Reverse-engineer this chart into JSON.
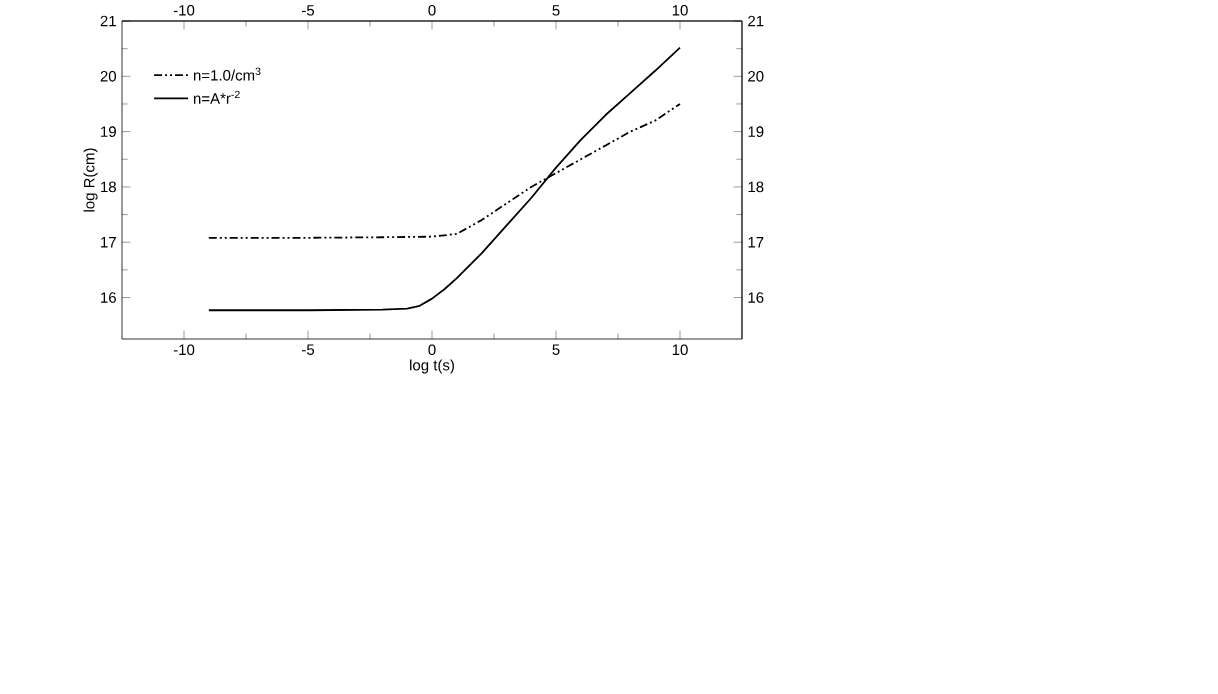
{
  "chart_data": {
    "type": "line",
    "xlabel": "log t(s)",
    "ylabel": "log R(cm)",
    "xlim": [
      -12.5,
      12.5
    ],
    "xticks": [
      -10,
      -5,
      0,
      5,
      10
    ],
    "ylim": [
      15.25,
      21
    ],
    "yticks": [
      16,
      17,
      18,
      19,
      20,
      21
    ],
    "x2lim": [
      -12.5,
      12.5
    ],
    "x2ticks": [
      -10,
      -5,
      0,
      5,
      10
    ],
    "y2lim": [
      15.25,
      21
    ],
    "y2ticks": [
      16,
      17,
      18,
      19,
      20,
      21
    ],
    "legend": "top left",
    "grid": false,
    "marker": "none",
    "series": [
      {
        "name": "n=1.0/cm$^{3}$",
        "color": "#000000",
        "line_style": "dashed",
        "x": [
          -9,
          -5,
          -2,
          0,
          1,
          2,
          3,
          4,
          5,
          6,
          7,
          8,
          9,
          10
        ],
        "values": [
          17.08,
          17.08,
          17.09,
          17.1,
          17.15,
          17.4,
          17.7,
          18.0,
          18.25,
          18.5,
          18.75,
          19.0,
          19.2,
          19.5
        ]
      },
      {
        "name": "n=A*r$^{-2}$",
        "color": "#000000",
        "line_style": "solid",
        "x": [
          -9,
          -5,
          -2,
          -1,
          -0.5,
          0,
          0.5,
          1,
          2,
          3,
          4,
          5,
          6,
          7,
          8,
          9,
          10
        ],
        "values": [
          15.77,
          15.77,
          15.78,
          15.8,
          15.85,
          15.98,
          16.15,
          16.35,
          16.8,
          17.3,
          17.8,
          18.35,
          18.85,
          19.3,
          19.7,
          20.1,
          20.52
        ]
      }
    ]
  }
}
